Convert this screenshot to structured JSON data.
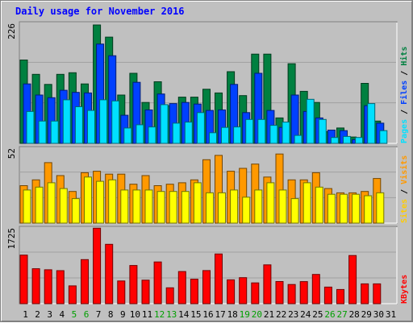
{
  "title": "Daily usage for November 2016",
  "chart_data": [
    {
      "type": "bar",
      "panel": "top",
      "max_label": "226",
      "ymax": 226,
      "categories": [
        "1",
        "2",
        "3",
        "4",
        "5",
        "6",
        "7",
        "8",
        "9",
        "10",
        "11",
        "12",
        "13",
        "14",
        "15",
        "16",
        "17",
        "18",
        "19",
        "20",
        "21",
        "22",
        "23",
        "24",
        "25",
        "26",
        "27",
        "28",
        "29",
        "30",
        "31"
      ],
      "series": [
        {
          "name": "Hits",
          "color": "#008040",
          "values": [
            157,
            130,
            111,
            130,
            133,
            112,
            223,
            200,
            91,
            132,
            77,
            116,
            71,
            87,
            87,
            102,
            95,
            135,
            90,
            168,
            168,
            48,
            150,
            98,
            77,
            22,
            29,
            12,
            113,
            42,
            0
          ]
        },
        {
          "name": "Files",
          "color": "#0040ff",
          "values": [
            112,
            91,
            86,
            100,
            96,
            95,
            187,
            165,
            53,
            115,
            63,
            93,
            75,
            77,
            74,
            62,
            63,
            111,
            58,
            132,
            62,
            30,
            91,
            60,
            48,
            25,
            24,
            7,
            71,
            38,
            0
          ]
        },
        {
          "name": "Pages",
          "color": "#00e0ff",
          "values": [
            60,
            42,
            42,
            82,
            69,
            62,
            82,
            80,
            29,
            35,
            31,
            73,
            38,
            40,
            58,
            20,
            30,
            31,
            45,
            45,
            34,
            40,
            15,
            83,
            45,
            11,
            13,
            11,
            75,
            24,
            0
          ]
        }
      ],
      "legend": [
        "Pages",
        "/",
        "Files",
        "/",
        "Hits"
      ]
    },
    {
      "type": "bar",
      "panel": "middle",
      "max_label": "52",
      "ymax": 52,
      "series": [
        {
          "name": "Visits",
          "color": "#ff9900",
          "values": [
            26,
            30,
            42,
            33,
            22,
            35,
            36,
            34,
            34,
            27,
            33,
            26,
            27,
            28,
            30,
            44,
            47,
            36,
            38,
            41,
            32,
            48,
            30,
            30,
            35,
            24,
            21,
            21,
            22,
            31,
            0
          ]
        },
        {
          "name": "Sites",
          "color": "#ffff00",
          "values": [
            23,
            25,
            28,
            24,
            17,
            32,
            29,
            30,
            23,
            23,
            23,
            22,
            22,
            22,
            28,
            21,
            21,
            23,
            18,
            23,
            28,
            23,
            17,
            28,
            25,
            20,
            20,
            20,
            19,
            21,
            0
          ]
        }
      ],
      "legend": [
        "Sites",
        "/",
        "Visits"
      ]
    },
    {
      "type": "bar",
      "panel": "bottom",
      "max_label": "1725",
      "ymax": 1725,
      "series": [
        {
          "name": "KBytes",
          "color": "#ff0000",
          "values": [
            1107,
            797,
            773,
            752,
            406,
            1004,
            1720,
            1353,
            517,
            869,
            535,
            950,
            361,
            733,
            557,
            755,
            1132,
            543,
            592,
            474,
            885,
            505,
            436,
            503,
            666,
            378,
            323,
            1097,
            451,
            452,
            0
          ]
        }
      ],
      "legend": [
        "KBytes"
      ]
    }
  ],
  "weekend_days": [
    "5",
    "6",
    "12",
    "13",
    "19",
    "20",
    "26",
    "27"
  ],
  "colors": {
    "background": "#c0c0c0",
    "title": "#0000ff",
    "day_label": "#000000",
    "weekend_label": "#00a000"
  }
}
